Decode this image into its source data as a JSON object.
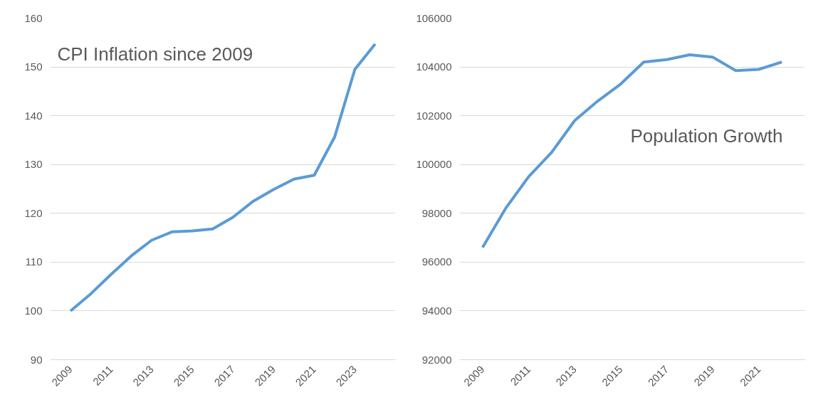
{
  "chart_data": [
    {
      "type": "line",
      "title": "CPI Inflation since 2009",
      "categories": [
        "2009",
        null,
        "2011",
        null,
        "2013",
        null,
        "2015",
        null,
        "2017",
        null,
        "2019",
        null,
        "2021",
        null,
        "2023",
        null
      ],
      "series": [
        {
          "color": "#5b9bd5",
          "values": [
            100,
            103.5,
            107.5,
            111.3,
            114.5,
            116.2,
            116.4,
            116.8,
            119.2,
            122.5,
            124.9,
            127,
            127.8,
            135.6,
            149.5,
            154.7
          ]
        }
      ],
      "ylim": [
        90,
        160
      ],
      "yticks": [
        90,
        100,
        110,
        120,
        130,
        140,
        150,
        160
      ],
      "grid": "y",
      "marker": "none",
      "line_style": "solid"
    },
    {
      "type": "line",
      "title": "Population Growth",
      "categories": [
        "2009",
        null,
        "2011",
        null,
        "2013",
        null,
        "2015",
        null,
        "2017",
        null,
        "2019",
        null,
        "2021",
        null
      ],
      "series": [
        {
          "color": "#5b9bd5",
          "values": [
            96600,
            98200,
            99500,
            100500,
            101800,
            102600,
            103300,
            104200,
            104300,
            104500,
            104400,
            103850,
            103900,
            104200
          ]
        }
      ],
      "ylim": [
        92000,
        106000
      ],
      "yticks": [
        92000,
        94000,
        96000,
        98000,
        100000,
        102000,
        104000,
        106000
      ],
      "grid": "y",
      "marker": "none",
      "line_style": "solid"
    }
  ]
}
